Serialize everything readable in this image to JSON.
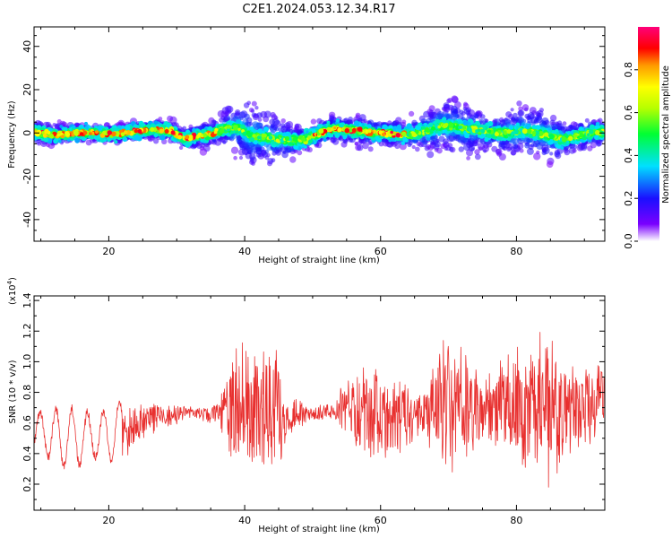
{
  "title": "C2E1.2024.053.12.34.R17",
  "colors": {
    "snr_line": "#e8302f",
    "frame": "#000000"
  },
  "chart_data": [
    {
      "type": "heatmap",
      "title": "C2E1.2024.053.12.34.R17",
      "xlabel": "Height of straight line (km)",
      "ylabel": "Frequency (Hz)",
      "xlim": [
        9,
        93
      ],
      "ylim": [
        -50,
        49
      ],
      "x_ticks": [
        20,
        40,
        60,
        80
      ],
      "y_ticks": [
        -40,
        -20,
        0,
        20,
        40
      ],
      "colorbar": {
        "label": "Normalized spectral amplitude",
        "range": [
          0.0,
          1.0
        ],
        "ticks": [
          "0.0",
          "0.2",
          "0.4",
          "0.6",
          "0.8"
        ]
      },
      "ridge": {
        "x": [
          9,
          12,
          15,
          18,
          21,
          24,
          27,
          29,
          31,
          33,
          35,
          37,
          39,
          41,
          43,
          45,
          47,
          49,
          51,
          53,
          55,
          57,
          59,
          61,
          63,
          65,
          67,
          69,
          71,
          73,
          75,
          77,
          79,
          81,
          83,
          85,
          87,
          89,
          91,
          93
        ],
        "y": [
          0.5,
          -1,
          0,
          0,
          -0.5,
          1,
          1.5,
          1,
          -2.5,
          -1.5,
          -0.5,
          2,
          2.5,
          -1.5,
          -2,
          -3,
          -3.5,
          -3,
          0,
          2,
          1.5,
          1,
          0,
          0,
          -1,
          -0.5,
          1,
          3.5,
          3,
          2,
          1,
          0,
          0,
          1,
          0,
          -1.5,
          -3,
          -1.5,
          0,
          0.5
        ]
      },
      "spread_hz": {
        "x": [
          9,
          20,
          30,
          36,
          40,
          44,
          48,
          52,
          58,
          64,
          68,
          72,
          76,
          80,
          84,
          88,
          93
        ],
        "y": [
          4,
          3,
          4,
          5,
          12,
          10,
          5,
          5,
          6,
          5,
          9,
          10,
          7,
          9,
          10,
          6,
          5
        ]
      }
    },
    {
      "type": "line",
      "xlabel": "Height of straight line (km)",
      "ylabel": "SNR (10 * v/v)",
      "y_multiplier": "(x10",
      "y_multiplier_exp": "4",
      "xlim": [
        9,
        93
      ],
      "ylim": [
        0.03,
        1.43
      ],
      "x_ticks": [
        20,
        40,
        60,
        80
      ],
      "y_ticks": [
        0.2,
        0.4,
        0.6,
        0.8,
        1.0,
        1.2,
        1.4
      ],
      "x_tick_labels": [
        "20",
        "40",
        "60",
        "80"
      ],
      "y_tick_labels": [
        "0.2",
        "0.4",
        "0.6",
        "0.8",
        "1.0",
        "1.2",
        "1.4"
      ],
      "series": [
        {
          "mean": {
            "x": [
              9,
              14,
              20,
              25,
              30,
              35,
              40,
              45,
              50,
              55,
              60,
              65,
              70,
              75,
              80,
              85,
              90,
              93
            ],
            "y": [
              0.55,
              0.5,
              0.52,
              0.6,
              0.66,
              0.66,
              0.7,
              0.66,
              0.66,
              0.68,
              0.68,
              0.66,
              0.72,
              0.68,
              0.7,
              0.7,
              0.68,
              0.7
            ]
          },
          "amplitude": {
            "x": [
              9,
              14,
              18,
              22,
              27,
              33,
              36,
              38,
              41,
              44,
              47,
              49,
              53,
              55,
              58,
              61,
              64,
              66,
              69,
              73,
              75,
              78,
              81,
              85,
              88,
              90,
              93
            ],
            "y": [
              0.12,
              0.2,
              0.14,
              0.2,
              0.1,
              0.04,
              0.08,
              0.4,
              0.52,
              0.55,
              0.15,
              0.06,
              0.06,
              0.25,
              0.38,
              0.35,
              0.25,
              0.18,
              0.45,
              0.45,
              0.2,
              0.35,
              0.55,
              0.55,
              0.4,
              0.3,
              0.35
            ]
          }
        }
      ]
    }
  ]
}
